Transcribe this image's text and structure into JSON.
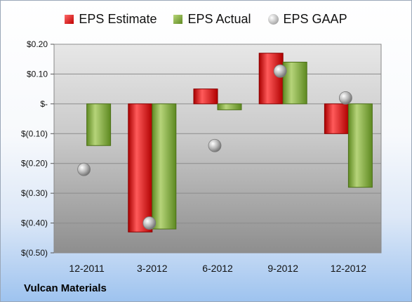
{
  "chart_data": {
    "type": "bar",
    "categories": [
      "12-2011",
      "3-2012",
      "6-2012",
      "9-2012",
      "12-2012"
    ],
    "series": [
      {
        "name": "EPS Estimate",
        "values": [
          null,
          -0.43,
          0.05,
          0.17,
          -0.1
        ]
      },
      {
        "name": "EPS Actual",
        "values": [
          -0.14,
          -0.42,
          -0.02,
          0.14,
          -0.28
        ]
      },
      {
        "name": "EPS GAAP",
        "type": "scatter",
        "values": [
          -0.22,
          -0.4,
          -0.14,
          0.11,
          0.02
        ]
      }
    ],
    "y_ticks": [
      "$0.20",
      "$0.10",
      "$-",
      "$(0.10)",
      "$(0.20)",
      "$(0.30)",
      "$(0.40)",
      "$(0.50)"
    ],
    "y_tick_values": [
      0.2,
      0.1,
      0,
      -0.1,
      -0.2,
      -0.3,
      -0.4,
      -0.5
    ],
    "ylim": [
      -0.5,
      0.2
    ],
    "grid": true,
    "legend": "top",
    "colors": {
      "estimate": "#c00000",
      "actual": "#76a232",
      "gaap": "#a6a6a6"
    }
  },
  "footer": {
    "company": "Vulcan Materials"
  }
}
